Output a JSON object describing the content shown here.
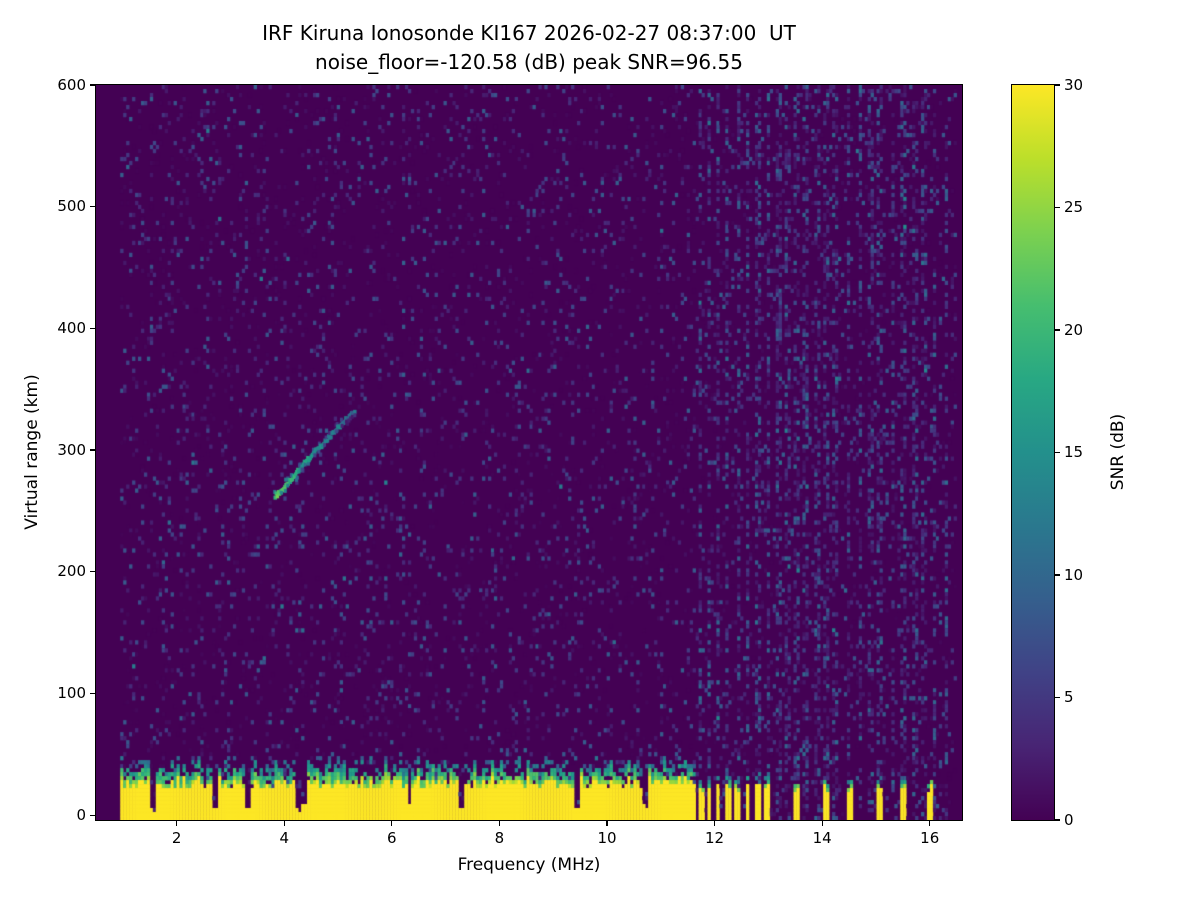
{
  "figure": {
    "background": "#ffffff",
    "colors": {
      "snr_min": "#440154",
      "snr_max": "#fde725"
    }
  },
  "chart_data": {
    "type": "heatmap",
    "title": "IRF Kiruna Ionosonde KI167 2026-02-27 08:37:00  UT",
    "subtitle": "noise_floor=-120.58 (dB) peak SNR=96.55",
    "xlabel": "Frequency (MHz)",
    "ylabel": "Virtual range (km)",
    "xlim": [
      0.5,
      16.6
    ],
    "ylim": [
      -4,
      600
    ],
    "xticks": [
      2,
      4,
      6,
      8,
      10,
      12,
      14,
      16
    ],
    "yticks": [
      0,
      100,
      200,
      300,
      400,
      500,
      600
    ],
    "freq_range_mhz": [
      0.95,
      16.5
    ],
    "noise_floor_db": -120.58,
    "peak_snr_db": 96.55,
    "colorbar": {
      "label": "SNR (dB)",
      "range": [
        0,
        30
      ],
      "ticks": [
        0,
        5,
        10,
        15,
        20,
        25,
        30
      ],
      "colormap": "viridis",
      "position": "right"
    },
    "noise": {
      "seed": 167,
      "speckle_density": 0.11,
      "max_db": 9
    },
    "interference_stripes_mhz": [
      11.72,
      11.9,
      12.06,
      12.24,
      12.44,
      12.62,
      12.8,
      13.0,
      13.2,
      13.35,
      13.52,
      13.7,
      13.9,
      14.07,
      14.25,
      14.5,
      14.7,
      14.9,
      15.07,
      15.3,
      15.5,
      15.72,
      15.9,
      16.1,
      16.3
    ],
    "ground_clutter": {
      "solid_top_km": 26,
      "transition_top_km": 44,
      "solid_freq_max_mhz": 11.65,
      "notches_mhz": [
        1.55,
        2.73,
        3.32,
        4.25,
        4.37,
        6.33,
        7.3,
        9.46,
        10.7
      ],
      "segments_mhz": [
        [
          11.68,
          11.79
        ],
        [
          11.85,
          11.95
        ],
        [
          12.01,
          12.11
        ],
        [
          12.18,
          12.29
        ],
        [
          12.38,
          12.49
        ],
        [
          12.57,
          12.66
        ],
        [
          12.74,
          12.85
        ],
        [
          12.94,
          13.05
        ],
        [
          13.47,
          13.57
        ],
        [
          14.02,
          14.12
        ],
        [
          14.45,
          14.55
        ],
        [
          15.02,
          15.12
        ],
        [
          15.45,
          15.55
        ],
        [
          15.95,
          16.05
        ]
      ]
    },
    "echo_trace": {
      "points_mhz_km": [
        [
          3.8,
          262
        ],
        [
          3.9,
          266
        ],
        [
          4.0,
          271
        ],
        [
          4.1,
          276
        ],
        [
          4.2,
          281
        ],
        [
          4.3,
          287
        ],
        [
          4.45,
          294
        ],
        [
          4.6,
          301
        ],
        [
          4.75,
          308
        ],
        [
          4.9,
          315
        ],
        [
          5.05,
          322
        ],
        [
          5.2,
          328
        ],
        [
          5.3,
          332
        ]
      ],
      "snr_db_start": 22,
      "snr_db_end": 10
    }
  }
}
